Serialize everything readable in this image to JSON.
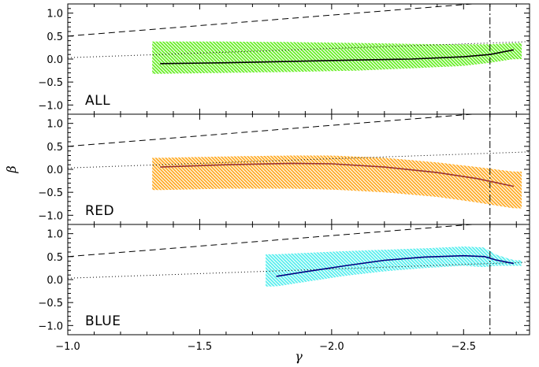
{
  "chart_data": {
    "type": "area",
    "layout": "three vertically stacked panels sharing the x axis",
    "xlabel": "γ",
    "ylabel": "β",
    "xlim": [
      -1.0,
      -2.75
    ],
    "x_reversed": true,
    "ylim": [
      -1.2,
      1.2
    ],
    "x_ticks": [
      -1.0,
      -1.5,
      -2.0,
      -2.5
    ],
    "x_tick_labels": [
      "−1.0",
      "−1.5",
      "−2.0",
      "−2.5"
    ],
    "y_ticks": [
      -1.0,
      -0.5,
      0.0,
      0.5,
      1.0
    ],
    "y_tick_labels": [
      "−1.0",
      "−0.5",
      "0.0",
      "0.5",
      "1.0"
    ],
    "vertical_line": {
      "x": -2.6,
      "style": "dash-dot"
    },
    "dashed_line": {
      "x": [
        -1.0,
        -2.75
      ],
      "y": [
        0.5,
        1.3
      ]
    },
    "dotted_line": {
      "x": [
        -1.0,
        -2.75
      ],
      "y": [
        0.03,
        0.38
      ]
    },
    "panels": [
      {
        "label": "ALL",
        "band_color": "#66ee22",
        "line_color": "#000000",
        "x": [
          -1.35,
          -1.6,
          -1.85,
          -2.1,
          -2.3,
          -2.5,
          -2.6,
          -2.69
        ],
        "y": [
          -0.1,
          -0.08,
          -0.05,
          -0.02,
          0.0,
          0.05,
          0.1,
          0.2
        ],
        "lower": [
          -0.32,
          -0.3,
          -0.28,
          -0.25,
          -0.2,
          -0.15,
          -0.08,
          0.0
        ],
        "upper": [
          0.38,
          0.38,
          0.37,
          0.35,
          0.33,
          0.32,
          0.32,
          0.35
        ],
        "band_x_start": -1.32,
        "band_x_end": -2.72
      },
      {
        "label": "RED",
        "band_color": "#ffaa22",
        "line_color": "#993333",
        "x": [
          -1.35,
          -1.6,
          -1.85,
          -2.0,
          -2.2,
          -2.4,
          -2.55,
          -2.69
        ],
        "y": [
          0.05,
          0.1,
          0.13,
          0.12,
          0.05,
          -0.07,
          -0.2,
          -0.37
        ],
        "lower": [
          -0.45,
          -0.42,
          -0.42,
          -0.44,
          -0.5,
          -0.6,
          -0.72,
          -0.85
        ],
        "upper": [
          0.25,
          0.28,
          0.3,
          0.3,
          0.25,
          0.15,
          0.05,
          -0.05
        ],
        "band_x_start": -1.32,
        "band_x_end": -2.72
      },
      {
        "label": "BLUE",
        "band_color": "#55eeee",
        "line_color": "#000080",
        "x": [
          -1.79,
          -1.9,
          -2.05,
          -2.2,
          -2.35,
          -2.5,
          -2.58,
          -2.62,
          -2.69
        ],
        "y": [
          0.07,
          0.17,
          0.3,
          0.42,
          0.49,
          0.52,
          0.5,
          0.43,
          0.35
        ],
        "lower": [
          -0.15,
          -0.05,
          0.08,
          0.18,
          0.25,
          0.3,
          0.27,
          0.3,
          0.3
        ],
        "upper": [
          0.55,
          0.58,
          0.62,
          0.65,
          0.68,
          0.72,
          0.7,
          0.55,
          0.42
        ],
        "band_x_start": -1.75,
        "band_x_end": -2.72
      }
    ]
  }
}
